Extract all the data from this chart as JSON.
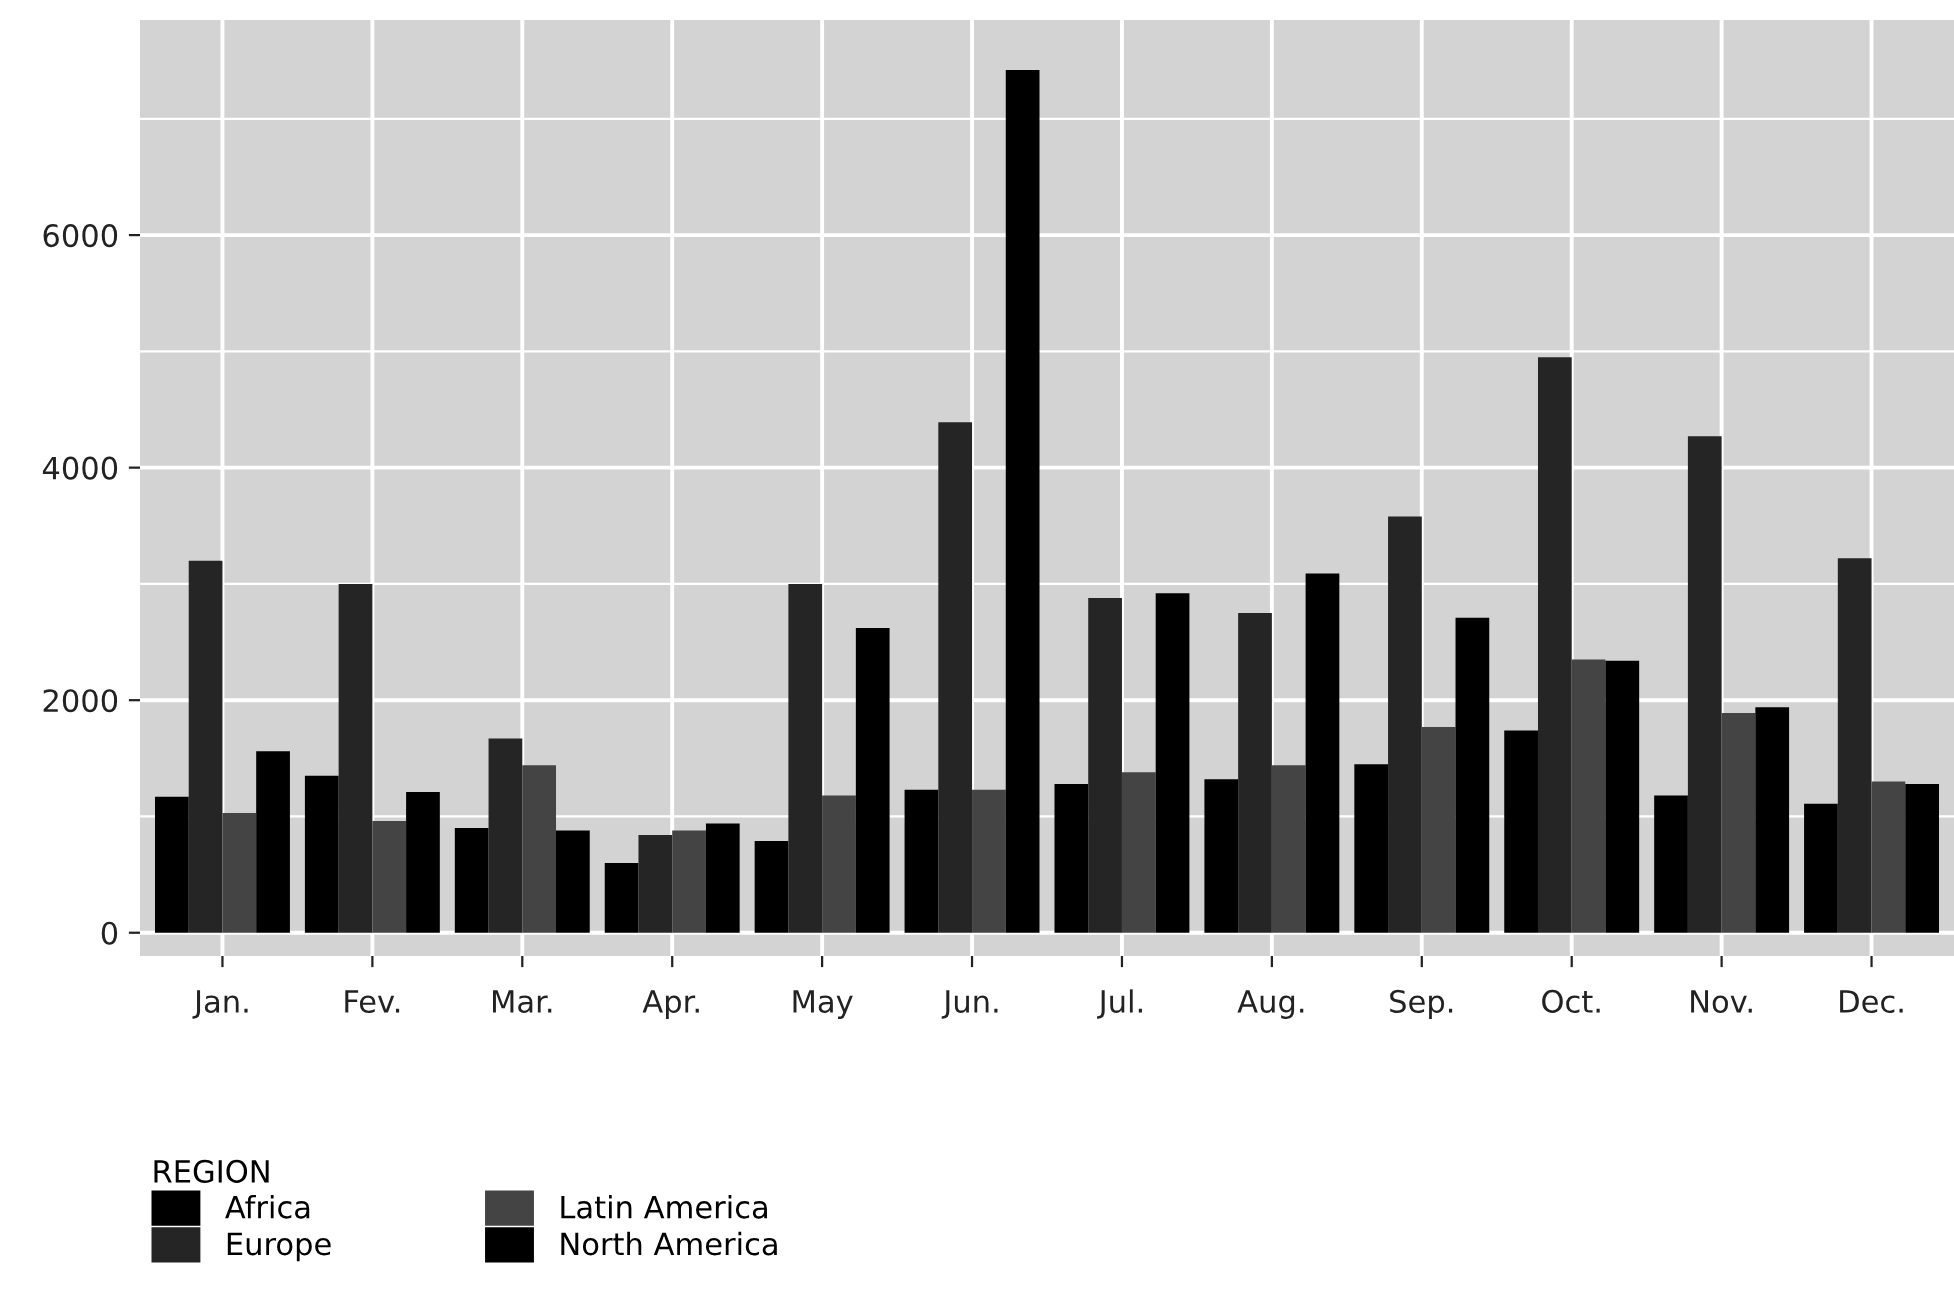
{
  "chart_data": {
    "type": "bar",
    "categories": [
      "Jan.",
      "Fev.",
      "Mar.",
      "Apr.",
      "May",
      "Jun.",
      "Jul.",
      "Aug.",
      "Sep.",
      "Oct.",
      "Nov.",
      "Dec."
    ],
    "series": [
      {
        "name": "Africa",
        "color": "#000000",
        "values": [
          1170,
          1350,
          900,
          600,
          790,
          1230,
          1280,
          1320,
          1450,
          1740,
          1180,
          1110
        ]
      },
      {
        "name": "Europe",
        "color": "#252525",
        "values": [
          3200,
          3000,
          1670,
          840,
          3000,
          4390,
          2880,
          2750,
          3580,
          4950,
          4270,
          3220
        ]
      },
      {
        "name": "Latin America",
        "color": "#444444",
        "values": [
          1030,
          960,
          1440,
          880,
          1180,
          1230,
          1380,
          1440,
          1770,
          2350,
          1890,
          1300
        ]
      },
      {
        "name": "North America",
        "color": "#000000",
        "values": [
          1560,
          1210,
          880,
          940,
          2620,
          7420,
          2920,
          3090,
          2710,
          2340,
          1940,
          1280
        ]
      }
    ],
    "legend_title": "REGION",
    "legend": "bottom left",
    "ylim": [
      -200,
      7850
    ],
    "yticks": [
      0,
      2000,
      4000,
      6000
    ],
    "grid": true
  }
}
